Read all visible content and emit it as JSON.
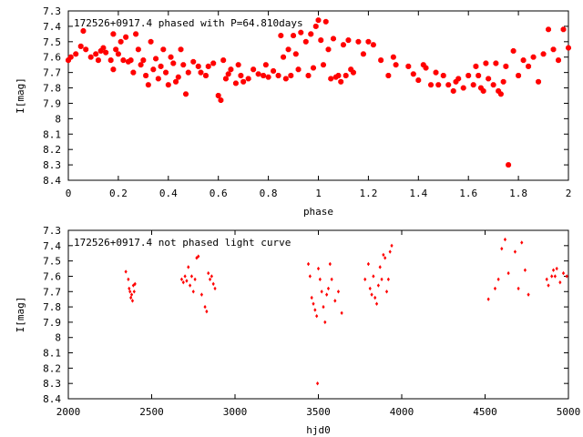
{
  "colors": {
    "points": "#ff0000",
    "axes": "#000000",
    "background": "#ffffff"
  },
  "chart_data": [
    {
      "type": "scatter",
      "title": "172526+0917.4 phased with P=64.810days",
      "xlabel": "phase",
      "ylabel": "I[mag]",
      "xlim": [
        0,
        2
      ],
      "ylim": [
        8.4,
        7.3
      ],
      "y_inverted": true,
      "grid": false,
      "xticks": [
        "0",
        "0.2",
        "0.4",
        "0.6",
        "0.8",
        "1",
        "1.2",
        "1.4",
        "1.6",
        "1.8",
        "2"
      ],
      "yticks": [
        "7.3",
        "7.4",
        "7.5",
        "7.6",
        "7.7",
        "7.8",
        "7.9",
        "8",
        "8.1",
        "8.2",
        "8.3",
        "8.4"
      ],
      "x": [
        0.0,
        0.01,
        0.03,
        0.05,
        0.06,
        0.07,
        0.09,
        0.11,
        0.12,
        0.13,
        0.14,
        0.15,
        0.17,
        0.18,
        0.18,
        0.19,
        0.2,
        0.21,
        0.22,
        0.23,
        0.24,
        0.25,
        0.26,
        0.27,
        0.28,
        0.29,
        0.3,
        0.31,
        0.32,
        0.33,
        0.34,
        0.35,
        0.36,
        0.37,
        0.38,
        0.39,
        0.4,
        0.41,
        0.42,
        0.43,
        0.44,
        0.45,
        0.46,
        0.47,
        0.48,
        0.5,
        0.52,
        0.53,
        0.55,
        0.56,
        0.58,
        0.6,
        0.61,
        0.62,
        0.63,
        0.64,
        0.65,
        0.67,
        0.68,
        0.69,
        0.7,
        0.72,
        0.74,
        0.76,
        0.78,
        0.79,
        0.8,
        0.82,
        0.84,
        0.85,
        0.86,
        0.87,
        0.88,
        0.89,
        0.9,
        0.91,
        0.92,
        0.93,
        0.95,
        0.96,
        0.97,
        0.98,
        0.99,
        1.0,
        1.01,
        1.02,
        1.03,
        1.04,
        1.05,
        1.06,
        1.07,
        1.08,
        1.09,
        1.1,
        1.11,
        1.12,
        1.13,
        1.14,
        1.16,
        1.18,
        1.2,
        1.22,
        1.25,
        1.28,
        1.3,
        1.31,
        1.36,
        1.38,
        1.4,
        1.42,
        1.43,
        1.45,
        1.47,
        1.48,
        1.5,
        1.52,
        1.54,
        1.55,
        1.56,
        1.58,
        1.6,
        1.62,
        1.63,
        1.64,
        1.65,
        1.66,
        1.67,
        1.68,
        1.7,
        1.71,
        1.72,
        1.73,
        1.74,
        1.75,
        1.76,
        1.78,
        1.8,
        1.82,
        1.84,
        1.86,
        1.88,
        1.9,
        1.92,
        1.94,
        1.96,
        1.98,
        2.0
      ],
      "y": [
        7.62,
        7.6,
        7.58,
        7.53,
        7.43,
        7.55,
        7.6,
        7.58,
        7.62,
        7.56,
        7.54,
        7.57,
        7.62,
        7.45,
        7.68,
        7.55,
        7.58,
        7.5,
        7.62,
        7.47,
        7.63,
        7.62,
        7.7,
        7.45,
        7.55,
        7.65,
        7.62,
        7.72,
        7.78,
        7.5,
        7.68,
        7.61,
        7.74,
        7.66,
        7.55,
        7.7,
        7.78,
        7.6,
        7.64,
        7.76,
        7.73,
        7.55,
        7.65,
        7.84,
        7.7,
        7.63,
        7.66,
        7.7,
        7.72,
        7.66,
        7.64,
        7.85,
        7.88,
        7.62,
        7.74,
        7.71,
        7.68,
        7.77,
        7.65,
        7.72,
        7.76,
        7.74,
        7.68,
        7.71,
        7.72,
        7.65,
        7.73,
        7.69,
        7.72,
        7.46,
        7.6,
        7.74,
        7.55,
        7.72,
        7.46,
        7.58,
        7.68,
        7.44,
        7.5,
        7.72,
        7.45,
        7.67,
        7.4,
        7.36,
        7.49,
        7.65,
        7.37,
        7.55,
        7.74,
        7.48,
        7.73,
        7.72,
        7.76,
        7.52,
        7.72,
        7.49,
        7.68,
        7.7,
        7.5,
        7.58,
        7.5,
        7.52,
        7.62,
        7.72,
        7.6,
        7.65,
        7.66,
        7.71,
        7.75,
        7.65,
        7.67,
        7.78,
        7.7,
        7.78,
        7.72,
        7.78,
        7.82,
        7.76,
        7.74,
        7.8,
        7.72,
        7.78,
        7.66,
        7.72,
        7.8,
        7.82,
        7.64,
        7.74,
        7.78,
        7.64,
        7.82,
        7.84,
        7.76,
        7.66,
        8.3,
        7.56,
        7.72,
        7.62,
        7.66,
        7.6,
        7.76,
        7.58,
        7.42,
        7.55,
        7.62,
        7.42,
        7.54
      ]
    },
    {
      "type": "scatter",
      "title": "172526+0917.4 not phased light curve",
      "xlabel": "hjd0",
      "ylabel": "I[mag]",
      "xlim": [
        2000,
        5000
      ],
      "ylim": [
        8.4,
        7.3
      ],
      "y_inverted": true,
      "grid": false,
      "xticks": [
        "2000",
        "2500",
        "3000",
        "3500",
        "4000",
        "4500",
        "5000"
      ],
      "yticks": [
        "7.3",
        "7.4",
        "7.5",
        "7.6",
        "7.7",
        "7.8",
        "7.9",
        "8",
        "8.1",
        "8.2",
        "8.3",
        "8.4"
      ],
      "x": [
        2345,
        2360,
        2365,
        2370,
        2375,
        2380,
        2385,
        2390,
        2395,
        2400,
        2680,
        2690,
        2700,
        2710,
        2720,
        2730,
        2740,
        2750,
        2760,
        2770,
        2780,
        2800,
        2820,
        2830,
        2840,
        2850,
        2860,
        2870,
        2880,
        3440,
        3450,
        3460,
        3470,
        3480,
        3490,
        3495,
        3500,
        3510,
        3520,
        3530,
        3540,
        3550,
        3560,
        3570,
        3580,
        3600,
        3620,
        3640,
        3780,
        3800,
        3810,
        3820,
        3830,
        3840,
        3850,
        3860,
        3870,
        3880,
        3890,
        3900,
        3910,
        3920,
        3930,
        3940,
        4520,
        4560,
        4580,
        4600,
        4620,
        4640,
        4680,
        4700,
        4720,
        4740,
        4760,
        4870,
        4880,
        4900,
        4910,
        4920,
        4930,
        4950,
        4970,
        4990
      ],
      "y": [
        7.57,
        7.62,
        7.68,
        7.7,
        7.74,
        7.72,
        7.76,
        7.66,
        7.7,
        7.65,
        7.62,
        7.64,
        7.6,
        7.63,
        7.54,
        7.66,
        7.6,
        7.7,
        7.62,
        7.48,
        7.47,
        7.72,
        7.8,
        7.83,
        7.58,
        7.62,
        7.6,
        7.65,
        7.68,
        7.52,
        7.6,
        7.74,
        7.78,
        7.82,
        7.86,
        8.3,
        7.55,
        7.62,
        7.7,
        7.8,
        7.9,
        7.72,
        7.68,
        7.52,
        7.62,
        7.76,
        7.7,
        7.84,
        7.62,
        7.52,
        7.68,
        7.72,
        7.6,
        7.74,
        7.78,
        7.66,
        7.54,
        7.62,
        7.46,
        7.48,
        7.7,
        7.62,
        7.44,
        7.4,
        7.75,
        7.68,
        7.62,
        7.42,
        7.36,
        7.58,
        7.44,
        7.68,
        7.38,
        7.56,
        7.72,
        7.62,
        7.66,
        7.6,
        7.56,
        7.6,
        7.55,
        7.64,
        7.58,
        7.6
      ]
    }
  ]
}
